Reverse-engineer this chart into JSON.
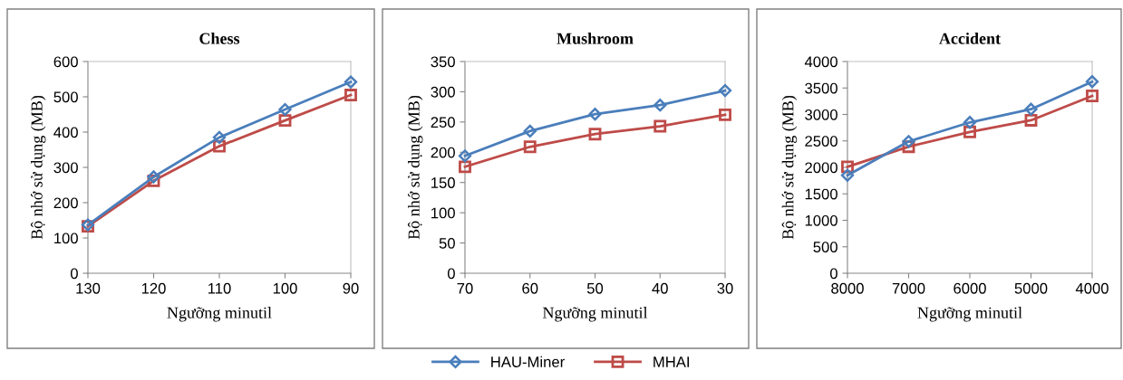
{
  "chart_data": [
    {
      "type": "line",
      "title": "Chess",
      "xlabel": "Ngưỡng minutil",
      "ylabel": "Bộ nhớ sử dụng (MB)",
      "categories": [
        "130",
        "120",
        "110",
        "100",
        "90"
      ],
      "ylim": [
        0,
        600
      ],
      "yticks": [
        0,
        100,
        200,
        300,
        400,
        500,
        600
      ],
      "grid": false,
      "legend": "bottom",
      "series": [
        {
          "name": "HAU-Miner",
          "color": "#4a7ebb",
          "marker": "diamond",
          "values": [
            137,
            273,
            385,
            464,
            542
          ]
        },
        {
          "name": "MHAI",
          "color": "#be4b48",
          "marker": "square",
          "values": [
            133,
            262,
            360,
            433,
            505
          ]
        }
      ]
    },
    {
      "type": "line",
      "title": "Mushroom",
      "xlabel": "Ngưỡng minutil",
      "ylabel": "Bộ nhớ sử dụng (MB)",
      "categories": [
        "70",
        "60",
        "50",
        "40",
        "30"
      ],
      "ylim": [
        0,
        350
      ],
      "yticks": [
        0,
        50,
        100,
        150,
        200,
        250,
        300,
        350
      ],
      "grid": false,
      "series": [
        {
          "color": "#4a7ebb",
          "marker": "diamond",
          "values": [
            194,
            235,
            263,
            278,
            302
          ]
        },
        {
          "color": "#be4b48",
          "marker": "square",
          "values": [
            176,
            209,
            230,
            243,
            262
          ]
        }
      ]
    },
    {
      "type": "line",
      "title": "Accident",
      "xlabel": "Ngưỡng minutil",
      "ylabel": "Bộ nhớ sử dụng (MB)",
      "categories": [
        "8000",
        "7000",
        "6000",
        "5000",
        "4000"
      ],
      "ylim": [
        0,
        4000
      ],
      "yticks": [
        0,
        500,
        1000,
        1500,
        2000,
        2500,
        3000,
        3500,
        4000
      ],
      "grid": false,
      "series": [
        {
          "color": "#4a7ebb",
          "marker": "diamond",
          "values": [
            1850,
            2490,
            2850,
            3100,
            3620
          ]
        },
        {
          "color": "#be4b48",
          "marker": "square",
          "values": [
            2010,
            2390,
            2670,
            2890,
            3350
          ]
        }
      ]
    }
  ]
}
